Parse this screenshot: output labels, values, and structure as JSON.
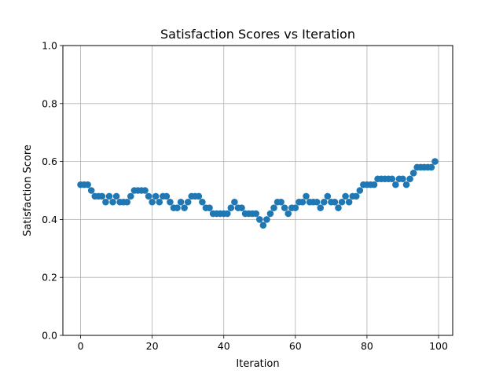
{
  "chart_data": {
    "type": "scatter",
    "title": "Satisfaction Scores vs Iteration",
    "xlabel": "Iteration",
    "ylabel": "Satisfaction Score",
    "xlim": [
      -4.95,
      103.95
    ],
    "ylim": [
      0.0,
      1.0
    ],
    "xticks": [
      0,
      20,
      40,
      60,
      80,
      100
    ],
    "xtick_labels": [
      "0",
      "20",
      "40",
      "60",
      "80",
      "100"
    ],
    "yticks": [
      0.0,
      0.2,
      0.4,
      0.6,
      0.8,
      1.0
    ],
    "ytick_labels": [
      "0.0",
      "0.2",
      "0.4",
      "0.6",
      "0.8",
      "1.0"
    ],
    "grid": true,
    "marker_color": "#1f77b4",
    "series": [
      {
        "x": [
          0,
          1,
          2,
          3,
          4,
          5,
          6,
          7,
          8,
          9,
          10,
          11,
          12,
          13,
          14,
          15,
          16,
          17,
          18,
          19,
          20,
          21,
          22,
          23,
          24,
          25,
          26,
          27,
          28,
          29,
          30,
          31,
          32,
          33,
          34,
          35,
          36,
          37,
          38,
          39,
          40,
          41,
          42,
          43,
          44,
          45,
          46,
          47,
          48,
          49,
          50,
          51,
          52,
          53,
          54,
          55,
          56,
          57,
          58,
          59,
          60,
          61,
          62,
          63,
          64,
          65,
          66,
          67,
          68,
          69,
          70,
          71,
          72,
          73,
          74,
          75,
          76,
          77,
          78,
          79,
          80,
          81,
          82,
          83,
          84,
          85,
          86,
          87,
          88,
          89,
          90,
          91,
          92,
          93,
          94,
          95,
          96,
          97,
          98,
          99
        ],
        "y": [
          0.52,
          0.52,
          0.52,
          0.5,
          0.48,
          0.48,
          0.48,
          0.46,
          0.48,
          0.46,
          0.48,
          0.46,
          0.46,
          0.46,
          0.48,
          0.5,
          0.5,
          0.5,
          0.5,
          0.48,
          0.46,
          0.48,
          0.46,
          0.48,
          0.48,
          0.46,
          0.44,
          0.44,
          0.46,
          0.44,
          0.46,
          0.48,
          0.48,
          0.48,
          0.46,
          0.44,
          0.44,
          0.42,
          0.42,
          0.42,
          0.42,
          0.42,
          0.44,
          0.46,
          0.44,
          0.44,
          0.42,
          0.42,
          0.42,
          0.42,
          0.4,
          0.38,
          0.4,
          0.42,
          0.44,
          0.46,
          0.46,
          0.44,
          0.42,
          0.44,
          0.44,
          0.46,
          0.46,
          0.48,
          0.46,
          0.46,
          0.46,
          0.44,
          0.46,
          0.48,
          0.46,
          0.46,
          0.44,
          0.46,
          0.48,
          0.46,
          0.48,
          0.48,
          0.5,
          0.52,
          0.52,
          0.52,
          0.52,
          0.54,
          0.54,
          0.54,
          0.54,
          0.54,
          0.52,
          0.54,
          0.54,
          0.52,
          0.54,
          0.56,
          0.58,
          0.58,
          0.58,
          0.58,
          0.58,
          0.6
        ]
      }
    ]
  }
}
